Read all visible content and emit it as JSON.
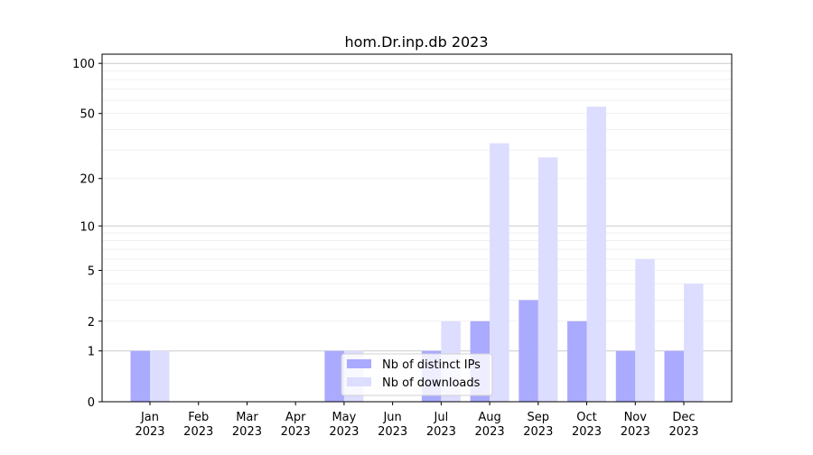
{
  "chart_data": {
    "type": "bar",
    "title": "hom.Dr.inp.db 2023",
    "xlabel": "",
    "ylabel": "",
    "yscale": "symlog (log10(1+y))",
    "ylim": [
      0,
      120
    ],
    "yticks": [
      0,
      1,
      2,
      5,
      10,
      20,
      50,
      100
    ],
    "grid": true,
    "legend_position": "bottom-center",
    "categories": [
      "Jan\n2023",
      "Feb\n2023",
      "Mar\n2023",
      "Apr\n2023",
      "May\n2023",
      "Jun\n2023",
      "Jul\n2023",
      "Aug\n2023",
      "Sep\n2023",
      "Oct\n2023",
      "Nov\n2023",
      "Dec\n2023"
    ],
    "series": [
      {
        "name": "Nb of distinct IPs",
        "color": "#aaaaff",
        "values": [
          1,
          0,
          0,
          0,
          1,
          0,
          1,
          2,
          3,
          2,
          1,
          1
        ]
      },
      {
        "name": "Nb of downloads",
        "color": "#ddddff",
        "values": [
          1,
          0,
          0,
          0,
          1,
          0,
          2,
          33,
          27,
          55,
          6,
          4
        ]
      }
    ]
  }
}
